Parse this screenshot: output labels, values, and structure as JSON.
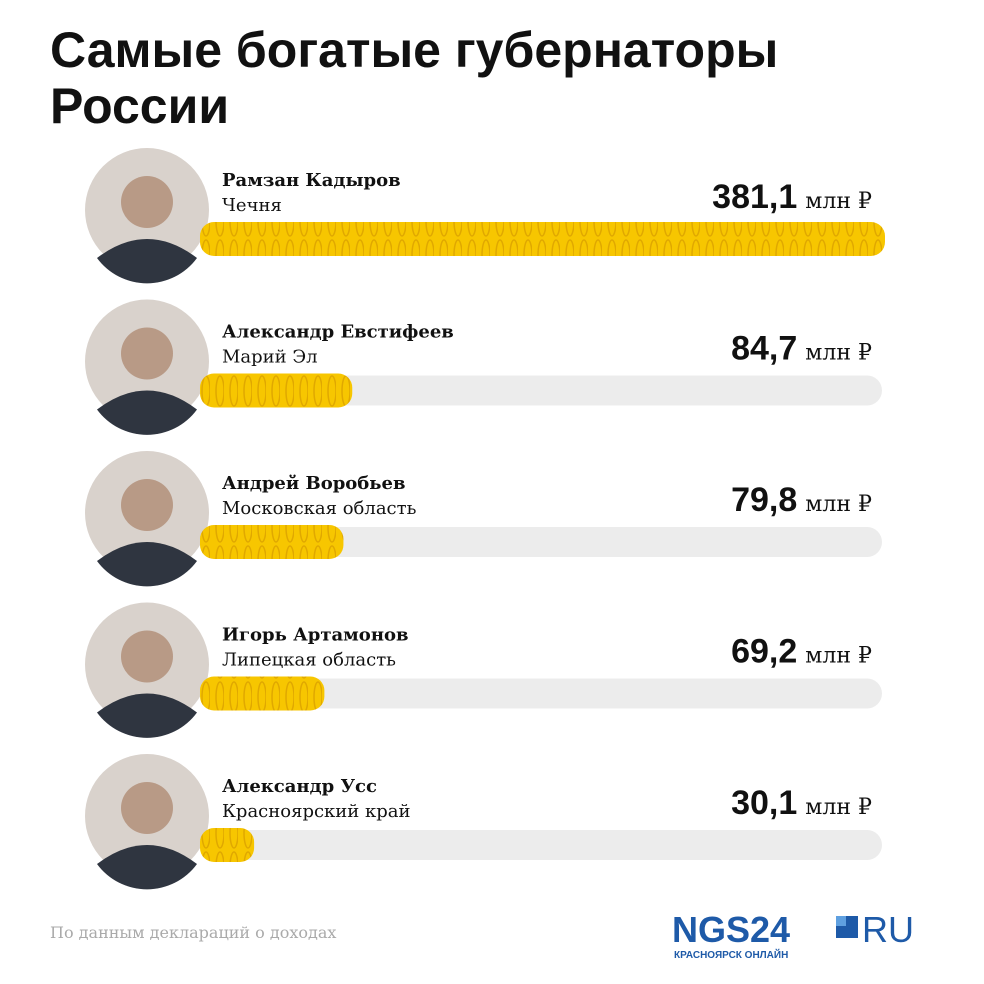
{
  "chart_data": {
    "type": "bar",
    "title": "Самые богатые губернаторы России",
    "categories": [
      "Рамзан Кадыров",
      "Александр Евстифеев",
      "Андрей Воробьев",
      "Игорь Артамонов",
      "Александр Усс"
    ],
    "regions": [
      "Чечня",
      "Марий Эл",
      "Московская область",
      "Липецкая область",
      "Красноярский край"
    ],
    "values": [
      381.1,
      84.7,
      79.8,
      69.2,
      30.1
    ],
    "value_labels": [
      "381,1",
      "84,7",
      "79,8",
      "69,2",
      "30,1"
    ],
    "unit": "млн ₽",
    "color": "#f7c600",
    "source": "По данным деклараций о доходах",
    "logo": {
      "main": "NGS24",
      "suffix": "RU",
      "tagline": "КРАСНОЯРСК ОНЛАЙН"
    }
  }
}
